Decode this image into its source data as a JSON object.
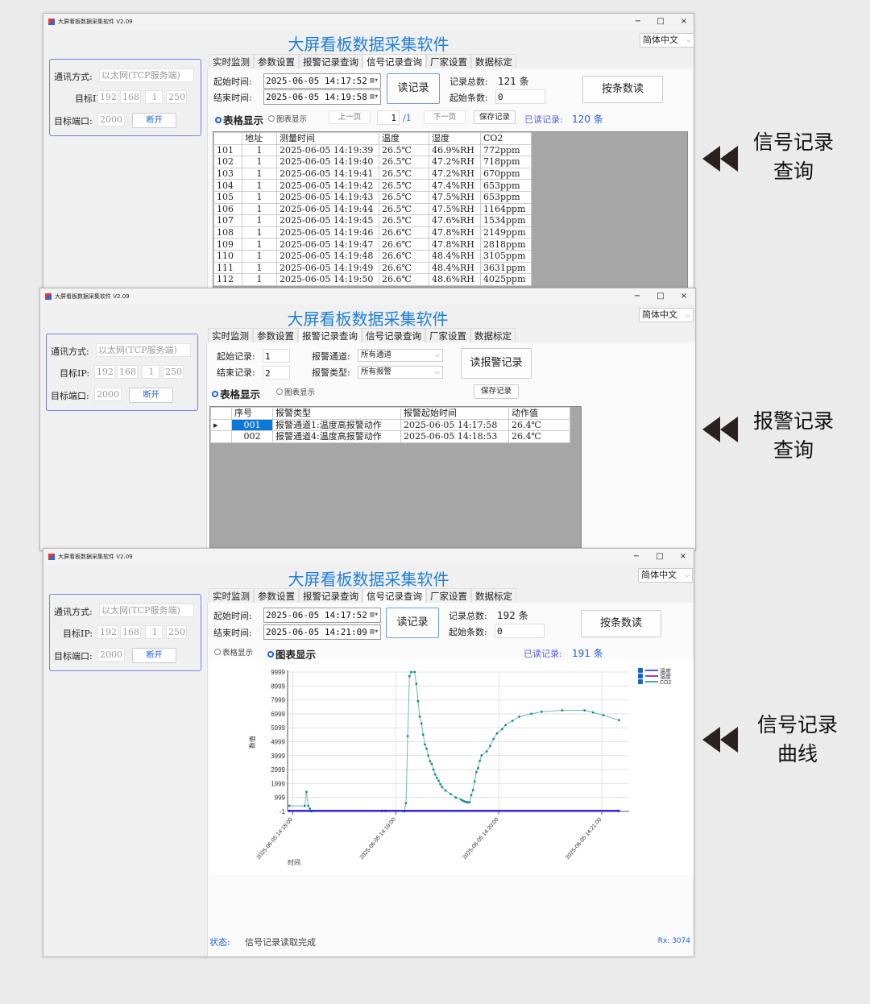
{
  "app": {
    "window_title": "大屏看板数据采集软件 V2.09",
    "title": "大屏看板数据采集软件",
    "language": "简体中文",
    "minimize": "−",
    "maximize": "□",
    "close": "×"
  },
  "tabs": [
    "实时监测",
    "参数设置",
    "报警记录查询",
    "信号记录查询",
    "厂家设置",
    "数据标定"
  ],
  "conn": {
    "mode_label": "通讯方式:",
    "mode_value": "以太网(TCP服务端)",
    "ip_label": "目标IP:",
    "ip": [
      "192",
      "168",
      "1",
      "250"
    ],
    "port_label": "目标端口:",
    "port": "2000",
    "disconnect": "断开"
  },
  "signal_table": {
    "start_label": "起始时间:",
    "start": "2025-06-05 14:17:52",
    "end_label": "结束时间:",
    "end": "2025-06-05 14:19:58",
    "read_btn": "读记录",
    "total_label": "记录总数:",
    "total": "121 条",
    "start_count_label": "起始条数:",
    "start_count": "0",
    "read_by_count": "按条数读",
    "table_view": "表格显示",
    "chart_view": "图表显示",
    "prev": "上一页",
    "page": "1",
    "pages": "/1",
    "next": "下一页",
    "save": "保存记录",
    "read_label": "已读记录:",
    "read_value": "120 条",
    "columns": [
      "",
      "地址",
      "测量时间",
      "温度",
      "湿度",
      "CO2"
    ],
    "rows": [
      [
        "101",
        "1",
        "2025-06-05 14:19:39",
        "26.5℃",
        "46.9%RH",
        "772ppm"
      ],
      [
        "102",
        "1",
        "2025-06-05 14:19:40",
        "26.5℃",
        "47.2%RH",
        "718ppm"
      ],
      [
        "103",
        "1",
        "2025-06-05 14:19:41",
        "26.5℃",
        "47.2%RH",
        "670ppm"
      ],
      [
        "104",
        "1",
        "2025-06-05 14:19:42",
        "26.5℃",
        "47.4%RH",
        "653ppm"
      ],
      [
        "105",
        "1",
        "2025-06-05 14:19:43",
        "26.5℃",
        "47.5%RH",
        "653ppm"
      ],
      [
        "106",
        "1",
        "2025-06-05 14:19:44",
        "26.5℃",
        "47.5%RH",
        "1164ppm"
      ],
      [
        "107",
        "1",
        "2025-06-05 14:19:45",
        "26.5℃",
        "47.6%RH",
        "1534ppm"
      ],
      [
        "108",
        "1",
        "2025-06-05 14:19:46",
        "26.6℃",
        "47.8%RH",
        "2149ppm"
      ],
      [
        "109",
        "1",
        "2025-06-05 14:19:47",
        "26.6℃",
        "47.8%RH",
        "2818ppm"
      ],
      [
        "110",
        "1",
        "2025-06-05 14:19:48",
        "26.6℃",
        "48.4%RH",
        "3105ppm"
      ],
      [
        "111",
        "1",
        "2025-06-05 14:19:49",
        "26.6℃",
        "48.4%RH",
        "3631ppm"
      ],
      [
        "112",
        "1",
        "2025-06-05 14:19:50",
        "26.6℃",
        "48.6%RH",
        "4025ppm"
      ]
    ]
  },
  "alarm": {
    "start_label": "起始记录:",
    "start": "1",
    "end_label": "结束记录:",
    "end": "2",
    "channel_label": "报警通道:",
    "channel": "所有通道",
    "type_label": "报警类型:",
    "type": "所有报警",
    "read_btn": "读报警记录",
    "table_view": "表格显示",
    "chart_view": "图表显示",
    "save": "保存记录",
    "columns": [
      "",
      "序号",
      "报警类型",
      "报警起始时间",
      "动作值"
    ],
    "rows": [
      [
        "▸",
        "001",
        "报警通道1:温度高报警动作",
        "2025-06-05 14:17:58",
        "26.4℃"
      ],
      [
        "",
        "002",
        "报警通道4:温度高报警动作",
        "2025-06-05 14:18:53",
        "26.4℃"
      ]
    ]
  },
  "signal_chart": {
    "start": "2025-06-05 14:17:52",
    "end": "2025-06-05 14:21:09",
    "total": "192 条",
    "start_count": "0",
    "read_value": "191 条"
  },
  "status": {
    "label": "状态:",
    "text": "信号记录读取完成",
    "rx": "Rx: 3074"
  },
  "side_labels": [
    [
      "信号记录",
      "查询"
    ],
    [
      "报警记录",
      "查询"
    ],
    [
      "信号记录",
      "曲线"
    ]
  ],
  "chart_data": {
    "type": "line",
    "xlabel": "时间",
    "ylabel": "数值",
    "ylim": [
      -1,
      9999
    ],
    "yticks": [
      "9999",
      "8999",
      "7999",
      "6999",
      "5999",
      "4999",
      "3999",
      "2999",
      "1999",
      "999",
      "-1"
    ],
    "xlim": [
      "2025-06-05 14:17:57",
      "2025-06-05 14:21:16"
    ],
    "xticks": [
      "2025-06-05 14:18:00",
      "2025-06-05 14:19:00",
      "2025-06-05 14:20:00",
      "2025-06-05 14:21:00"
    ],
    "grid": true,
    "legend": "top-right",
    "series": [
      {
        "name": "温度",
        "color": "#1a1aff",
        "points": [
          [
            "14:17:58",
            26.4
          ],
          [
            "14:18:52",
            26.4
          ],
          [
            "14:18:54",
            26.4
          ],
          [
            "14:21:10",
            26.8
          ]
        ]
      },
      {
        "name": "湿度",
        "color": "#8b008b",
        "points": [
          [
            "14:17:58",
            46.5
          ],
          [
            "14:18:52",
            46.7
          ],
          [
            "14:18:54",
            46.7
          ],
          [
            "14:21:10",
            49.0
          ]
        ]
      },
      {
        "name": "CO2",
        "color": "#0f8a8a",
        "points": [
          [
            "14:17:58",
            400
          ],
          [
            "14:18:07",
            400
          ],
          [
            "14:18:08",
            1400
          ],
          [
            "14:18:09",
            400
          ],
          [
            "14:18:10",
            200
          ],
          [
            "14:18:11",
            0
          ],
          [
            "14:19:05",
            0
          ],
          [
            "14:19:06",
            600
          ],
          [
            "14:19:07",
            5400
          ],
          [
            "14:19:08",
            9700
          ],
          [
            "14:19:09",
            9999
          ],
          [
            "14:19:11",
            9999
          ],
          [
            "14:19:12",
            9150
          ],
          [
            "14:19:13",
            7900
          ],
          [
            "14:19:14",
            6800
          ],
          [
            "14:19:15",
            6300
          ],
          [
            "14:19:16",
            5500
          ],
          [
            "14:19:17",
            4800
          ],
          [
            "14:19:18",
            4500
          ],
          [
            "14:19:19",
            4000
          ],
          [
            "14:19:20",
            3600
          ],
          [
            "14:19:21",
            3400
          ],
          [
            "14:19:22",
            3000
          ],
          [
            "14:19:23",
            2650
          ],
          [
            "14:19:24",
            2400
          ],
          [
            "14:19:25",
            2200
          ],
          [
            "14:19:26",
            1950
          ],
          [
            "14:19:27",
            1750
          ],
          [
            "14:19:29",
            1500
          ],
          [
            "14:19:32",
            1250
          ],
          [
            "14:19:35",
            1000
          ],
          [
            "14:19:38",
            850
          ],
          [
            "14:19:39",
            772
          ],
          [
            "14:19:40",
            718
          ],
          [
            "14:19:41",
            670
          ],
          [
            "14:19:42",
            653
          ],
          [
            "14:19:43",
            653
          ],
          [
            "14:19:44",
            1164
          ],
          [
            "14:19:45",
            1534
          ],
          [
            "14:19:46",
            2149
          ],
          [
            "14:19:47",
            2818
          ],
          [
            "14:19:48",
            3105
          ],
          [
            "14:19:49",
            3631
          ],
          [
            "14:19:50",
            4025
          ],
          [
            "14:19:53",
            4300
          ],
          [
            "14:19:55",
            4700
          ],
          [
            "14:19:57",
            5200
          ],
          [
            "14:19:59",
            5600
          ],
          [
            "14:20:02",
            5900
          ],
          [
            "14:20:04",
            6200
          ],
          [
            "14:20:08",
            6500
          ],
          [
            "14:20:12",
            6800
          ],
          [
            "14:20:19",
            7000
          ],
          [
            "14:20:25",
            7150
          ],
          [
            "14:20:37",
            7250
          ],
          [
            "14:20:50",
            7250
          ],
          [
            "14:20:55",
            7100
          ],
          [
            "14:21:01",
            6900
          ],
          [
            "14:21:10",
            6550
          ]
        ]
      }
    ]
  }
}
